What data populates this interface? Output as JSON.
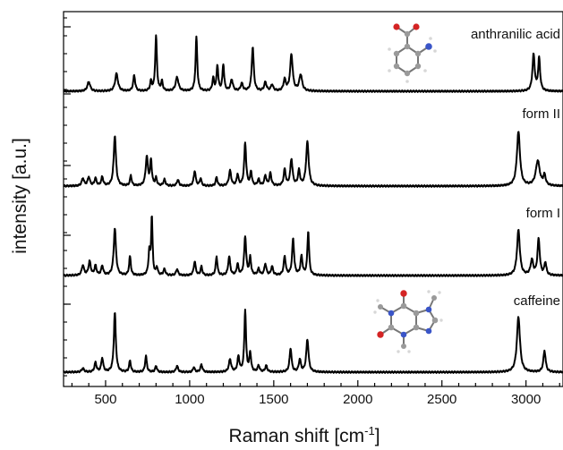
{
  "chart_data": {
    "type": "line",
    "xlabel": "Raman shift [cm",
    "xlabel_superscript": "-1",
    "xlabel_close": "]",
    "ylabel": "intensity [a.u.]",
    "xlim": [
      250,
      3220
    ],
    "xticks": [
      500,
      1000,
      1500,
      2000,
      2500,
      3000
    ],
    "grid": false,
    "series": [
      {
        "name": "anthranilic acid",
        "baseline": 0,
        "peaks": [
          [
            400,
            0.15,
            10
          ],
          [
            565,
            0.28,
            10
          ],
          [
            670,
            0.25,
            7
          ],
          [
            770,
            0.15,
            6
          ],
          [
            800,
            0.88,
            6
          ],
          [
            835,
            0.15,
            6
          ],
          [
            925,
            0.22,
            10
          ],
          [
            1040,
            0.86,
            6
          ],
          [
            1140,
            0.2,
            6
          ],
          [
            1165,
            0.4,
            6
          ],
          [
            1200,
            0.42,
            6
          ],
          [
            1250,
            0.18,
            8
          ],
          [
            1310,
            0.12,
            8
          ],
          [
            1375,
            0.7,
            7
          ],
          [
            1450,
            0.14,
            8
          ],
          [
            1490,
            0.1,
            8
          ],
          [
            1565,
            0.18,
            8
          ],
          [
            1605,
            0.58,
            9
          ],
          [
            1660,
            0.26,
            10
          ],
          [
            3045,
            0.58,
            8
          ],
          [
            3078,
            0.52,
            7
          ]
        ]
      },
      {
        "name": "form II",
        "baseline": 1,
        "peaks": [
          [
            365,
            0.12,
            8
          ],
          [
            400,
            0.14,
            8
          ],
          [
            440,
            0.12,
            7
          ],
          [
            480,
            0.14,
            7
          ],
          [
            555,
            0.8,
            8
          ],
          [
            650,
            0.16,
            6
          ],
          [
            745,
            0.46,
            8
          ],
          [
            770,
            0.4,
            6
          ],
          [
            800,
            0.12,
            6
          ],
          [
            850,
            0.1,
            7
          ],
          [
            930,
            0.1,
            7
          ],
          [
            1030,
            0.24,
            7
          ],
          [
            1065,
            0.12,
            6
          ],
          [
            1160,
            0.14,
            6
          ],
          [
            1240,
            0.24,
            8
          ],
          [
            1285,
            0.18,
            6
          ],
          [
            1330,
            0.68,
            7
          ],
          [
            1365,
            0.22,
            6
          ],
          [
            1410,
            0.1,
            7
          ],
          [
            1450,
            0.16,
            7
          ],
          [
            1480,
            0.2,
            7
          ],
          [
            1565,
            0.26,
            7
          ],
          [
            1605,
            0.42,
            8
          ],
          [
            1650,
            0.24,
            7
          ],
          [
            1700,
            0.7,
            9
          ],
          [
            2955,
            0.86,
            11
          ],
          [
            3070,
            0.4,
            14
          ],
          [
            3110,
            0.16,
            8
          ]
        ]
      },
      {
        "name": "form I",
        "baseline": 2,
        "peaks": [
          [
            365,
            0.16,
            8
          ],
          [
            405,
            0.22,
            8
          ],
          [
            440,
            0.15,
            7
          ],
          [
            480,
            0.15,
            7
          ],
          [
            555,
            0.75,
            8
          ],
          [
            645,
            0.3,
            6
          ],
          [
            760,
            0.36,
            6
          ],
          [
            775,
            0.92,
            5
          ],
          [
            805,
            0.12,
            6
          ],
          [
            850,
            0.1,
            7
          ],
          [
            925,
            0.1,
            7
          ],
          [
            1030,
            0.22,
            7
          ],
          [
            1070,
            0.14,
            6
          ],
          [
            1160,
            0.3,
            6
          ],
          [
            1235,
            0.3,
            7
          ],
          [
            1285,
            0.18,
            6
          ],
          [
            1330,
            0.62,
            7
          ],
          [
            1360,
            0.28,
            6
          ],
          [
            1410,
            0.1,
            7
          ],
          [
            1450,
            0.18,
            7
          ],
          [
            1490,
            0.14,
            7
          ],
          [
            1565,
            0.3,
            7
          ],
          [
            1615,
            0.58,
            7
          ],
          [
            1665,
            0.3,
            7
          ],
          [
            1705,
            0.7,
            6
          ],
          [
            2955,
            0.72,
            10
          ],
          [
            3035,
            0.24,
            9
          ],
          [
            3075,
            0.58,
            8
          ],
          [
            3115,
            0.2,
            7
          ]
        ]
      },
      {
        "name": "caffeine",
        "baseline": 3,
        "peaks": [
          [
            365,
            0.06,
            8
          ],
          [
            440,
            0.15,
            7
          ],
          [
            480,
            0.22,
            7
          ],
          [
            555,
            0.95,
            7
          ],
          [
            645,
            0.18,
            6
          ],
          [
            740,
            0.26,
            6
          ],
          [
            800,
            0.1,
            6
          ],
          [
            925,
            0.1,
            7
          ],
          [
            1025,
            0.08,
            6
          ],
          [
            1070,
            0.12,
            7
          ],
          [
            1240,
            0.2,
            8
          ],
          [
            1290,
            0.24,
            7
          ],
          [
            1330,
            0.98,
            6
          ],
          [
            1360,
            0.3,
            6
          ],
          [
            1410,
            0.1,
            7
          ],
          [
            1455,
            0.1,
            7
          ],
          [
            1600,
            0.38,
            7
          ],
          [
            1655,
            0.2,
            7
          ],
          [
            1700,
            0.52,
            8
          ],
          [
            2955,
            0.88,
            11
          ],
          [
            3110,
            0.34,
            8
          ]
        ]
      }
    ]
  }
}
